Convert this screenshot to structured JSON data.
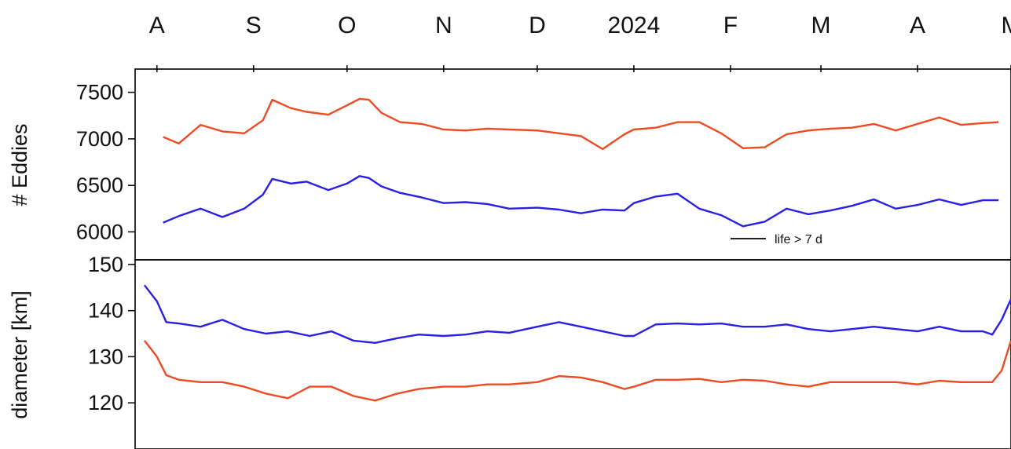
{
  "chart_data": [
    {
      "type": "line",
      "ylabel": "# Eddies",
      "yticks": [
        6000,
        6500,
        7000,
        7500
      ],
      "ylim": [
        5700,
        7750
      ],
      "x_labels": [
        "A",
        "S",
        "O",
        "N",
        "D",
        "2024",
        "F",
        "M",
        "A",
        "M"
      ],
      "x_label_dates": [
        "2023-08-01",
        "2023-09-01",
        "2023-10-01",
        "2023-11-01",
        "2023-12-01",
        "2024-01-01",
        "2024-02-01",
        "2024-03-01",
        "2024-04-01",
        "2024-05-01"
      ],
      "xlim": [
        "2023-07-25",
        "2024-05-01"
      ],
      "legend": {
        "label": "life > 7 d",
        "color": "#000000",
        "position": "bottom-right"
      },
      "grid": false,
      "series": [
        {
          "color": "#ee4a23",
          "x": [
            "2023-08-03",
            "2023-08-08",
            "2023-08-15",
            "2023-08-22",
            "2023-08-29",
            "2023-09-04",
            "2023-09-07",
            "2023-09-13",
            "2023-09-18",
            "2023-09-25",
            "2023-10-01",
            "2023-10-05",
            "2023-10-08",
            "2023-10-12",
            "2023-10-18",
            "2023-10-25",
            "2023-11-01",
            "2023-11-08",
            "2023-11-15",
            "2023-11-22",
            "2023-12-01",
            "2023-12-08",
            "2023-12-15",
            "2023-12-22",
            "2023-12-29",
            "2024-01-01",
            "2024-01-08",
            "2024-01-15",
            "2024-01-22",
            "2024-01-29",
            "2024-02-05",
            "2024-02-12",
            "2024-02-19",
            "2024-02-26",
            "2024-03-04",
            "2024-03-11",
            "2024-03-18",
            "2024-03-25",
            "2024-04-01",
            "2024-04-08",
            "2024-04-15",
            "2024-04-22",
            "2024-04-27"
          ],
          "y": [
            7020,
            6950,
            7150,
            7080,
            7060,
            7200,
            7420,
            7330,
            7290,
            7260,
            7360,
            7430,
            7420,
            7280,
            7180,
            7160,
            7100,
            7090,
            7110,
            7100,
            7090,
            7060,
            7030,
            6890,
            7050,
            7100,
            7120,
            7180,
            7180,
            7060,
            6900,
            6910,
            7050,
            7090,
            7110,
            7120,
            7160,
            7090,
            7160,
            7230,
            7150,
            7170,
            7180
          ]
        },
        {
          "color": "#2a1fe6",
          "x": [
            "2023-08-03",
            "2023-08-08",
            "2023-08-15",
            "2023-08-22",
            "2023-08-29",
            "2023-09-04",
            "2023-09-07",
            "2023-09-13",
            "2023-09-18",
            "2023-09-25",
            "2023-10-01",
            "2023-10-05",
            "2023-10-08",
            "2023-10-12",
            "2023-10-18",
            "2023-10-25",
            "2023-11-01",
            "2023-11-08",
            "2023-11-15",
            "2023-11-22",
            "2023-12-01",
            "2023-12-08",
            "2023-12-15",
            "2023-12-22",
            "2023-12-29",
            "2024-01-01",
            "2024-01-08",
            "2024-01-15",
            "2024-01-22",
            "2024-01-29",
            "2024-02-05",
            "2024-02-12",
            "2024-02-19",
            "2024-02-26",
            "2024-03-04",
            "2024-03-11",
            "2024-03-18",
            "2024-03-25",
            "2024-04-01",
            "2024-04-08",
            "2024-04-15",
            "2024-04-22",
            "2024-04-27"
          ],
          "y": [
            6100,
            6170,
            6250,
            6160,
            6250,
            6400,
            6570,
            6520,
            6540,
            6450,
            6520,
            6600,
            6580,
            6490,
            6420,
            6370,
            6310,
            6320,
            6300,
            6250,
            6260,
            6240,
            6200,
            6240,
            6230,
            6310,
            6380,
            6410,
            6250,
            6180,
            6060,
            6110,
            6250,
            6190,
            6230,
            6280,
            6350,
            6250,
            6290,
            6350,
            6290,
            6340,
            6340
          ]
        }
      ]
    },
    {
      "type": "line",
      "ylabel": "diameter [km]",
      "yticks": [
        120,
        130,
        140,
        150
      ],
      "ylim": [
        110,
        151
      ],
      "x_labels": [
        "A",
        "S",
        "O",
        "N",
        "D",
        "2024",
        "F",
        "M",
        "A",
        "M"
      ],
      "xlim": [
        "2023-07-25",
        "2024-05-01"
      ],
      "grid": false,
      "series": [
        {
          "color": "#2a1fe6",
          "x": [
            "2023-07-28",
            "2023-08-01",
            "2023-08-04",
            "2023-08-08",
            "2023-08-15",
            "2023-08-22",
            "2023-08-29",
            "2023-09-05",
            "2023-09-12",
            "2023-09-19",
            "2023-09-26",
            "2023-10-03",
            "2023-10-10",
            "2023-10-17",
            "2023-10-24",
            "2023-11-01",
            "2023-11-08",
            "2023-11-15",
            "2023-11-22",
            "2023-12-01",
            "2023-12-08",
            "2023-12-15",
            "2023-12-22",
            "2023-12-29",
            "2024-01-01",
            "2024-01-08",
            "2024-01-15",
            "2024-01-22",
            "2024-01-29",
            "2024-02-05",
            "2024-02-12",
            "2024-02-19",
            "2024-02-26",
            "2024-03-04",
            "2024-03-11",
            "2024-03-18",
            "2024-03-25",
            "2024-04-01",
            "2024-04-08",
            "2024-04-15",
            "2024-04-22",
            "2024-04-25",
            "2024-04-28",
            "2024-05-01"
          ],
          "y": [
            145.5,
            142,
            137.5,
            137.2,
            136.5,
            138,
            136,
            135,
            135.5,
            134.5,
            135.5,
            133.5,
            133,
            134,
            134.8,
            134.5,
            134.8,
            135.5,
            135.2,
            136.5,
            137.5,
            136.5,
            135.5,
            134.5,
            134.5,
            137,
            137.2,
            137,
            137.2,
            136.5,
            136.5,
            137,
            136,
            135.5,
            136,
            136.5,
            136,
            135.5,
            136.5,
            135.5,
            135.5,
            134.8,
            138,
            142.5
          ]
        },
        {
          "color": "#ee4a23",
          "x": [
            "2023-07-28",
            "2023-08-01",
            "2023-08-04",
            "2023-08-08",
            "2023-08-15",
            "2023-08-22",
            "2023-08-29",
            "2023-09-05",
            "2023-09-12",
            "2023-09-19",
            "2023-09-26",
            "2023-10-03",
            "2023-10-10",
            "2023-10-17",
            "2023-10-24",
            "2023-11-01",
            "2023-11-08",
            "2023-11-15",
            "2023-11-22",
            "2023-12-01",
            "2023-12-08",
            "2023-12-15",
            "2023-12-22",
            "2023-12-29",
            "2024-01-01",
            "2024-01-08",
            "2024-01-15",
            "2024-01-22",
            "2024-01-29",
            "2024-02-05",
            "2024-02-12",
            "2024-02-19",
            "2024-02-26",
            "2024-03-04",
            "2024-03-11",
            "2024-03-18",
            "2024-03-25",
            "2024-04-01",
            "2024-04-08",
            "2024-04-15",
            "2024-04-22",
            "2024-04-25",
            "2024-04-28",
            "2024-05-01"
          ],
          "y": [
            133.5,
            130,
            126,
            125,
            124.5,
            124.5,
            123.5,
            122,
            121,
            123.5,
            123.5,
            121.5,
            120.5,
            122,
            123,
            123.5,
            123.5,
            124,
            124,
            124.5,
            125.8,
            125.5,
            124.5,
            123,
            123.5,
            125,
            125,
            125.2,
            124.5,
            125,
            124.8,
            124,
            123.5,
            124.5,
            124.5,
            124.5,
            124.5,
            124,
            124.8,
            124.5,
            124.5,
            124.5,
            127,
            133.5
          ]
        }
      ]
    }
  ]
}
